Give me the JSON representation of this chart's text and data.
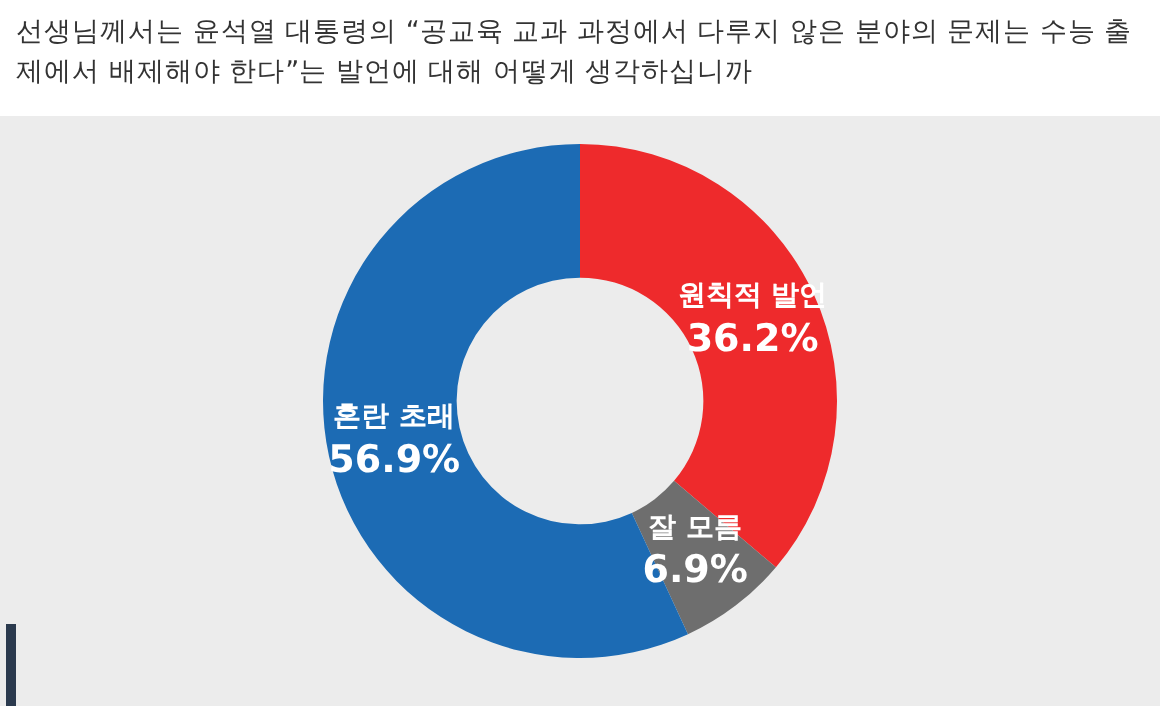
{
  "chart_data": {
    "type": "donut",
    "title": "선생님께서는 윤석열 대통령의 “공교육 교과 과정에서 다루지 않은 분야의 문제는 수능 출제에서 배제해야 한다”는 발언에 대해 어떻게 생각하십니까",
    "categories": [
      "원칙적 발언",
      "잘 모름",
      "혼란 초래"
    ],
    "values": [
      36.2,
      6.9,
      56.9
    ],
    "colors": [
      "#ee2a2c",
      "#6e6e6e",
      "#1c6bb4"
    ],
    "value_labels": [
      "36.2%",
      "6.9%",
      "56.9%"
    ]
  }
}
